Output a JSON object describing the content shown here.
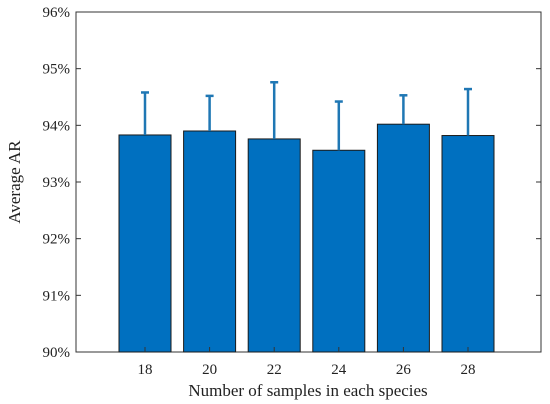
{
  "chart_data": {
    "type": "bar",
    "title": "",
    "xlabel": "Number of samples in each species",
    "ylabel": "Average AR",
    "categories": [
      "18",
      "20",
      "22",
      "24",
      "26",
      "28"
    ],
    "values": [
      93.83,
      93.9,
      93.76,
      93.56,
      94.02,
      93.82
    ],
    "error_upper": [
      94.58,
      94.52,
      94.76,
      94.42,
      94.53,
      94.64
    ],
    "ylim": [
      90,
      96
    ],
    "yticks": [
      "90%",
      "91%",
      "92%",
      "93%",
      "94%",
      "95%",
      "96%"
    ],
    "yticks_values": [
      90,
      91,
      92,
      93,
      94,
      95,
      96
    ],
    "grid": false,
    "legend": "none",
    "colors": {
      "bar_fill": "#0070C0",
      "bar_edge": "#1a1a1a",
      "error_bar": "#1f77b4",
      "axis": "#333333"
    }
  }
}
